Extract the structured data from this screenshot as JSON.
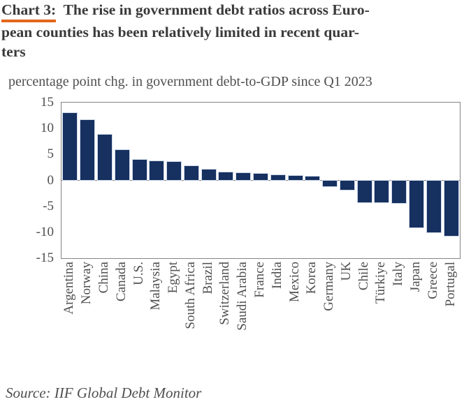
{
  "header": {
    "prefix": "Chart 3:",
    "title_line1_rest": "  The rise in government debt ratios across Euro-",
    "title_line2": "pean counties has been relatively limited in recent quar-",
    "title_line3": "ters",
    "underline_color": "#e2661c"
  },
  "chart_data": {
    "type": "bar",
    "title": "percentage point chg. in government debt-to-GDP since Q1 2023",
    "categories": [
      "Argentina",
      "Norway",
      "China",
      "Canada",
      "U.S.",
      "Malaysia",
      "Egypt",
      "South Africa",
      "Brazil",
      "Switzerland",
      "Saudi Arabia",
      "France",
      "India",
      "Mexico",
      "Korea",
      "Germany",
      "UK",
      "Chile",
      "Türkiye",
      "Italy",
      "Japan",
      "Greece",
      "Portugal"
    ],
    "values": [
      13.0,
      11.7,
      8.8,
      5.9,
      4.0,
      3.7,
      3.6,
      2.8,
      2.1,
      1.6,
      1.4,
      1.3,
      1.0,
      0.9,
      0.8,
      -1.2,
      -1.8,
      -4.2,
      -4.3,
      -4.4,
      -9.1,
      -10.0,
      -10.7
    ],
    "xlabel": "",
    "ylabel": "percentage point change",
    "ylim": [
      -15,
      15
    ],
    "yticks": [
      15,
      10,
      5,
      0,
      -5,
      -10,
      -15
    ],
    "grid": false,
    "legend_position": "none",
    "bar_color": "#16305f",
    "axis_color": "#848484"
  },
  "source": "Source: IIF Global Debt Monitor"
}
